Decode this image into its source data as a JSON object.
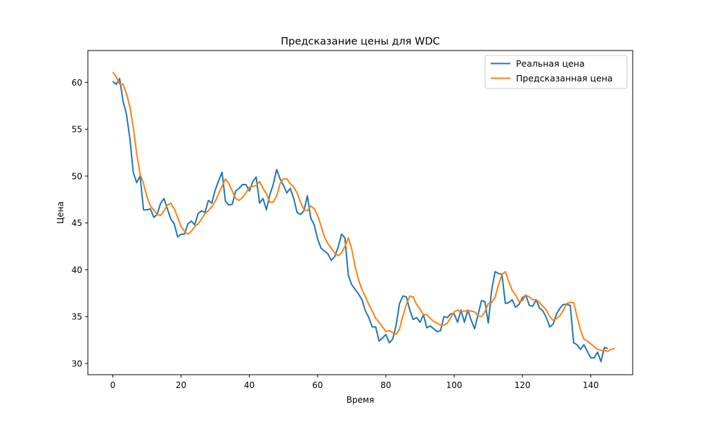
{
  "chart_data": {
    "type": "line",
    "title": "Предсказание цены для WDC",
    "xlabel": "Время",
    "ylabel": "Цена",
    "xlim": [
      -7.3,
      152.3
    ],
    "ylim": [
      28.8,
      63.4
    ],
    "xticks": [
      0,
      20,
      40,
      60,
      80,
      100,
      120,
      140
    ],
    "yticks": [
      30,
      35,
      40,
      45,
      50,
      55,
      60
    ],
    "grid": false,
    "legend_position": "top-right",
    "series": [
      {
        "name": "Реальная цена",
        "color": "#1f77b4",
        "values": [
          60.1,
          59.8,
          60.4,
          58.0,
          56.6,
          54.0,
          50.4,
          49.3,
          50.0,
          46.4,
          46.4,
          46.5,
          45.6,
          45.9,
          47.1,
          47.6,
          46.5,
          45.4,
          44.9,
          43.5,
          43.8,
          43.8,
          44.9,
          45.2,
          44.8,
          46.0,
          46.3,
          46.1,
          47.4,
          47.1,
          48.5,
          49.5,
          50.4,
          47.3,
          46.9,
          47.0,
          48.4,
          48.7,
          49.1,
          49.1,
          48.4,
          49.4,
          49.9,
          47.1,
          47.6,
          46.4,
          48.0,
          49.1,
          50.7,
          49.7,
          49.0,
          48.2,
          48.7,
          47.6,
          46.1,
          45.9,
          46.3,
          47.9,
          45.5,
          44.8,
          43.3,
          42.3,
          42.0,
          41.7,
          41.0,
          41.4,
          42.4,
          43.8,
          43.4,
          39.4,
          38.4,
          37.9,
          37.4,
          36.8,
          35.6,
          34.9,
          33.9,
          33.9,
          32.4,
          32.7,
          33.1,
          32.2,
          32.6,
          34.1,
          36.4,
          37.2,
          37.1,
          35.7,
          34.7,
          34.9,
          34.4,
          35.2,
          33.8,
          34.0,
          33.7,
          33.4,
          33.5,
          35.0,
          34.9,
          35.3,
          35.3,
          34.4,
          35.7,
          34.4,
          35.7,
          34.6,
          33.7,
          35.2,
          36.7,
          36.6,
          34.3,
          37.9,
          39.8,
          39.6,
          39.5,
          36.4,
          36.5,
          36.8,
          36.0,
          36.3,
          37.0,
          37.3,
          36.2,
          36.1,
          36.8,
          35.9,
          35.6,
          34.9,
          33.9,
          34.2,
          35.3,
          35.9,
          36.3,
          36.3,
          36.2,
          32.2,
          32.0,
          31.5,
          32.0,
          31.3,
          30.6,
          30.6,
          31.2,
          30.2,
          31.7,
          31.6
        ]
      },
      {
        "name": "Предсказанная цена",
        "color": "#ff7f0e",
        "values": [
          61.1,
          60.6,
          59.8,
          59.8,
          58.8,
          57.4,
          55.2,
          52.4,
          50.2,
          49.2,
          47.8,
          46.8,
          46.4,
          45.9,
          45.8,
          46.3,
          46.9,
          47.1,
          46.5,
          45.6,
          44.6,
          44.1,
          43.8,
          44.1,
          44.6,
          44.9,
          45.4,
          46.0,
          46.3,
          46.7,
          47.3,
          48.1,
          48.9,
          49.7,
          49.2,
          48.4,
          47.6,
          47.4,
          47.7,
          48.2,
          48.8,
          48.9,
          49.0,
          49.4,
          48.7,
          48.1,
          47.2,
          47.2,
          47.9,
          49.2,
          49.7,
          49.7,
          49.2,
          48.8,
          48.2,
          47.2,
          46.4,
          46.3,
          46.8,
          46.5,
          45.8,
          44.7,
          43.5,
          42.8,
          42.3,
          41.8,
          41.5,
          41.8,
          42.5,
          43.4,
          42.2,
          40.3,
          38.9,
          37.9,
          37.1,
          36.3,
          35.6,
          34.8,
          34.4,
          33.9,
          33.4,
          33.5,
          33.3,
          33.1,
          33.7,
          35.1,
          36.3,
          37.2,
          37.1,
          36.3,
          35.8,
          35.2,
          35.2,
          34.8,
          34.5,
          34.3,
          34.1,
          34.1,
          34.3,
          34.9,
          35.5,
          35.7,
          35.5,
          35.6,
          35.6,
          35.6,
          35.5,
          35.1,
          35.0,
          35.5,
          36.4,
          36.5,
          37.1,
          38.4,
          39.5,
          39.8,
          38.7,
          37.8,
          37.3,
          36.6,
          36.7,
          37.3,
          37.1,
          36.8,
          36.8,
          36.5,
          36.1,
          35.7,
          35.0,
          34.6,
          34.8,
          35.1,
          35.7,
          36.4,
          36.5,
          36.5,
          35.0,
          33.6,
          32.6,
          32.4,
          32.1,
          31.8,
          31.5,
          31.4,
          31.4,
          31.3,
          31.5,
          31.6
        ]
      }
    ]
  }
}
